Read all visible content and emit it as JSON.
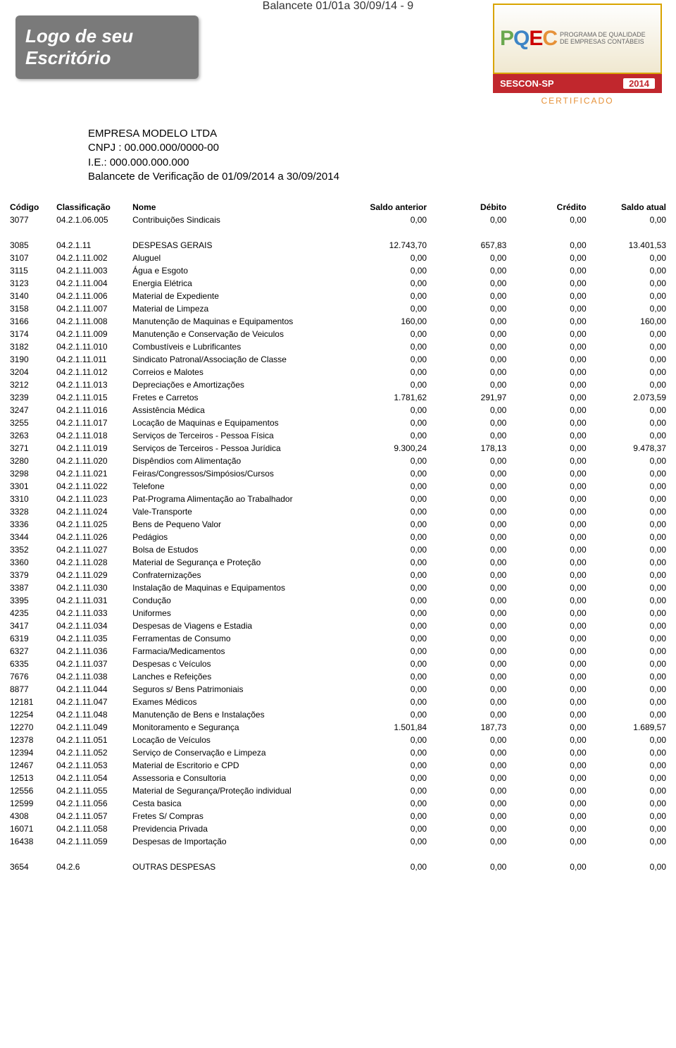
{
  "page_header_title": "Balancete 01/01a 30/09/14 - 9",
  "logo": {
    "line1": "Logo de seu",
    "line2": "Escritório"
  },
  "pqec": {
    "letters": [
      "P",
      "Q",
      "E",
      "C"
    ],
    "subtitle": "PROGRAMA DE QUALIDADE DE EMPRESAS CONTÁBEIS",
    "bar_left": "SESCON-SP",
    "bar_year": "2014",
    "certificado": "CERTIFICADO"
  },
  "company": {
    "name": "EMPRESA MODELO LTDA",
    "cnpj_label": "CNPJ : 00.000.000/0000-00",
    "ie_label": "I.E.: 000.000.000.000",
    "doc_title": "Balancete de Verificação de 01/09/2014 a 30/09/2014"
  },
  "columns": [
    "Código",
    "Classificação",
    "Nome",
    "Saldo anterior",
    "Débito",
    "Crédito",
    "Saldo atual"
  ],
  "rows": [
    {
      "codigo": "3077",
      "classif": "04.2.1.06.005",
      "nome": "Contribuições Sindicais",
      "sa": "0,00",
      "deb": "0,00",
      "cred": "0,00",
      "sat": "0,00"
    },
    {
      "spacer": true
    },
    {
      "codigo": "3085",
      "classif": "04.2.1.11",
      "nome": "DESPESAS GERAIS",
      "sa": "12.743,70",
      "deb": "657,83",
      "cred": "0,00",
      "sat": "13.401,53"
    },
    {
      "codigo": "3107",
      "classif": "04.2.1.11.002",
      "nome": "Aluguel",
      "sa": "0,00",
      "deb": "0,00",
      "cred": "0,00",
      "sat": "0,00"
    },
    {
      "codigo": "3115",
      "classif": "04.2.1.11.003",
      "nome": "Água e Esgoto",
      "sa": "0,00",
      "deb": "0,00",
      "cred": "0,00",
      "sat": "0,00"
    },
    {
      "codigo": "3123",
      "classif": "04.2.1.11.004",
      "nome": "Energia Elétrica",
      "sa": "0,00",
      "deb": "0,00",
      "cred": "0,00",
      "sat": "0,00"
    },
    {
      "codigo": "3140",
      "classif": "04.2.1.11.006",
      "nome": "Material de Expediente",
      "sa": "0,00",
      "deb": "0,00",
      "cred": "0,00",
      "sat": "0,00"
    },
    {
      "codigo": "3158",
      "classif": "04.2.1.11.007",
      "nome": "Material de Limpeza",
      "sa": "0,00",
      "deb": "0,00",
      "cred": "0,00",
      "sat": "0,00"
    },
    {
      "codigo": "3166",
      "classif": "04.2.1.11.008",
      "nome": "Manutenção de Maquinas e Equipamentos",
      "sa": "160,00",
      "deb": "0,00",
      "cred": "0,00",
      "sat": "160,00"
    },
    {
      "codigo": "3174",
      "classif": "04.2.1.11.009",
      "nome": "Manutenção e Conservação de Veiculos",
      "sa": "0,00",
      "deb": "0,00",
      "cred": "0,00",
      "sat": "0,00"
    },
    {
      "codigo": "3182",
      "classif": "04.2.1.11.010",
      "nome": "Combustíveis e Lubrificantes",
      "sa": "0,00",
      "deb": "0,00",
      "cred": "0,00",
      "sat": "0,00"
    },
    {
      "codigo": "3190",
      "classif": "04.2.1.11.011",
      "nome": "Sindicato Patronal/Associação de Classe",
      "sa": "0,00",
      "deb": "0,00",
      "cred": "0,00",
      "sat": "0,00"
    },
    {
      "codigo": "3204",
      "classif": "04.2.1.11.012",
      "nome": "Correios e Malotes",
      "sa": "0,00",
      "deb": "0,00",
      "cred": "0,00",
      "sat": "0,00"
    },
    {
      "codigo": "3212",
      "classif": "04.2.1.11.013",
      "nome": "Depreciações e Amortizações",
      "sa": "0,00",
      "deb": "0,00",
      "cred": "0,00",
      "sat": "0,00"
    },
    {
      "codigo": "3239",
      "classif": "04.2.1.11.015",
      "nome": "Fretes e Carretos",
      "sa": "1.781,62",
      "deb": "291,97",
      "cred": "0,00",
      "sat": "2.073,59"
    },
    {
      "codigo": "3247",
      "classif": "04.2.1.11.016",
      "nome": "Assistência Médica",
      "sa": "0,00",
      "deb": "0,00",
      "cred": "0,00",
      "sat": "0,00"
    },
    {
      "codigo": "3255",
      "classif": "04.2.1.11.017",
      "nome": "Locação de Maquinas e Equipamentos",
      "sa": "0,00",
      "deb": "0,00",
      "cred": "0,00",
      "sat": "0,00"
    },
    {
      "codigo": "3263",
      "classif": "04.2.1.11.018",
      "nome": "Serviços de Terceiros - Pessoa Física",
      "sa": "0,00",
      "deb": "0,00",
      "cred": "0,00",
      "sat": "0,00"
    },
    {
      "codigo": "3271",
      "classif": "04.2.1.11.019",
      "nome": "Serviços de Terceiros - Pessoa Jurídica",
      "sa": "9.300,24",
      "deb": "178,13",
      "cred": "0,00",
      "sat": "9.478,37"
    },
    {
      "codigo": "3280",
      "classif": "04.2.1.11.020",
      "nome": "Dispêndios com Alimentação",
      "sa": "0,00",
      "deb": "0,00",
      "cred": "0,00",
      "sat": "0,00"
    },
    {
      "codigo": "3298",
      "classif": "04.2.1.11.021",
      "nome": "Feiras/Congressos/Simpósios/Cursos",
      "sa": "0,00",
      "deb": "0,00",
      "cred": "0,00",
      "sat": "0,00"
    },
    {
      "codigo": "3301",
      "classif": "04.2.1.11.022",
      "nome": "Telefone",
      "sa": "0,00",
      "deb": "0,00",
      "cred": "0,00",
      "sat": "0,00"
    },
    {
      "codigo": "3310",
      "classif": "04.2.1.11.023",
      "nome": "Pat-Programa Alimentação ao Trabalhador",
      "sa": "0,00",
      "deb": "0,00",
      "cred": "0,00",
      "sat": "0,00"
    },
    {
      "codigo": "3328",
      "classif": "04.2.1.11.024",
      "nome": "Vale-Transporte",
      "sa": "0,00",
      "deb": "0,00",
      "cred": "0,00",
      "sat": "0,00"
    },
    {
      "codigo": "3336",
      "classif": "04.2.1.11.025",
      "nome": "Bens de Pequeno Valor",
      "sa": "0,00",
      "deb": "0,00",
      "cred": "0,00",
      "sat": "0,00"
    },
    {
      "codigo": "3344",
      "classif": "04.2.1.11.026",
      "nome": "Pedágios",
      "sa": "0,00",
      "deb": "0,00",
      "cred": "0,00",
      "sat": "0,00"
    },
    {
      "codigo": "3352",
      "classif": "04.2.1.11.027",
      "nome": "Bolsa de Estudos",
      "sa": "0,00",
      "deb": "0,00",
      "cred": "0,00",
      "sat": "0,00"
    },
    {
      "codigo": "3360",
      "classif": "04.2.1.11.028",
      "nome": "Material de Segurança e Proteção",
      "sa": "0,00",
      "deb": "0,00",
      "cred": "0,00",
      "sat": "0,00"
    },
    {
      "codigo": "3379",
      "classif": "04.2.1.11.029",
      "nome": "Confraternizações",
      "sa": "0,00",
      "deb": "0,00",
      "cred": "0,00",
      "sat": "0,00"
    },
    {
      "codigo": "3387",
      "classif": "04.2.1.11.030",
      "nome": "Instalação de Maquinas e Equipamentos",
      "sa": "0,00",
      "deb": "0,00",
      "cred": "0,00",
      "sat": "0,00"
    },
    {
      "codigo": "3395",
      "classif": "04.2.1.11.031",
      "nome": "Condução",
      "sa": "0,00",
      "deb": "0,00",
      "cred": "0,00",
      "sat": "0,00"
    },
    {
      "codigo": "4235",
      "classif": "04.2.1.11.033",
      "nome": "Uniformes",
      "sa": "0,00",
      "deb": "0,00",
      "cred": "0,00",
      "sat": "0,00"
    },
    {
      "codigo": "3417",
      "classif": "04.2.1.11.034",
      "nome": "Despesas de Viagens e Estadia",
      "sa": "0,00",
      "deb": "0,00",
      "cred": "0,00",
      "sat": "0,00"
    },
    {
      "codigo": "6319",
      "classif": "04.2.1.11.035",
      "nome": "Ferramentas de Consumo",
      "sa": "0,00",
      "deb": "0,00",
      "cred": "0,00",
      "sat": "0,00"
    },
    {
      "codigo": "6327",
      "classif": "04.2.1.11.036",
      "nome": "Farmacia/Medicamentos",
      "sa": "0,00",
      "deb": "0,00",
      "cred": "0,00",
      "sat": "0,00"
    },
    {
      "codigo": "6335",
      "classif": "04.2.1.11.037",
      "nome": "Despesas c Veículos",
      "sa": "0,00",
      "deb": "0,00",
      "cred": "0,00",
      "sat": "0,00"
    },
    {
      "codigo": "7676",
      "classif": "04.2.1.11.038",
      "nome": "Lanches e Refeições",
      "sa": "0,00",
      "deb": "0,00",
      "cred": "0,00",
      "sat": "0,00"
    },
    {
      "codigo": "8877",
      "classif": "04.2.1.11.044",
      "nome": "Seguros s/ Bens Patrimoniais",
      "sa": "0,00",
      "deb": "0,00",
      "cred": "0,00",
      "sat": "0,00"
    },
    {
      "codigo": "12181",
      "classif": "04.2.1.11.047",
      "nome": "Exames Médicos",
      "sa": "0,00",
      "deb": "0,00",
      "cred": "0,00",
      "sat": "0,00"
    },
    {
      "codigo": "12254",
      "classif": "04.2.1.11.048",
      "nome": "Manutenção de Bens e Instalações",
      "sa": "0,00",
      "deb": "0,00",
      "cred": "0,00",
      "sat": "0,00"
    },
    {
      "codigo": "12270",
      "classif": "04.2.1.11.049",
      "nome": "Monitoramento e Segurança",
      "sa": "1.501,84",
      "deb": "187,73",
      "cred": "0,00",
      "sat": "1.689,57"
    },
    {
      "codigo": "12378",
      "classif": "04.2.1.11.051",
      "nome": "Locação de Veículos",
      "sa": "0,00",
      "deb": "0,00",
      "cred": "0,00",
      "sat": "0,00"
    },
    {
      "codigo": "12394",
      "classif": "04.2.1.11.052",
      "nome": "Serviço de Conservação e Limpeza",
      "sa": "0,00",
      "deb": "0,00",
      "cred": "0,00",
      "sat": "0,00"
    },
    {
      "codigo": "12467",
      "classif": "04.2.1.11.053",
      "nome": "Material de Escritorio e CPD",
      "sa": "0,00",
      "deb": "0,00",
      "cred": "0,00",
      "sat": "0,00"
    },
    {
      "codigo": "12513",
      "classif": "04.2.1.11.054",
      "nome": "Assessoria e Consultoria",
      "sa": "0,00",
      "deb": "0,00",
      "cred": "0,00",
      "sat": "0,00"
    },
    {
      "codigo": "12556",
      "classif": "04.2.1.11.055",
      "nome": "Material de Segurança/Proteção individual",
      "sa": "0,00",
      "deb": "0,00",
      "cred": "0,00",
      "sat": "0,00"
    },
    {
      "codigo": "12599",
      "classif": "04.2.1.11.056",
      "nome": "Cesta basica",
      "sa": "0,00",
      "deb": "0,00",
      "cred": "0,00",
      "sat": "0,00"
    },
    {
      "codigo": "4308",
      "classif": "04.2.1.11.057",
      "nome": "Fretes S/ Compras",
      "sa": "0,00",
      "deb": "0,00",
      "cred": "0,00",
      "sat": "0,00"
    },
    {
      "codigo": "16071",
      "classif": "04.2.1.11.058",
      "nome": "Previdencia Privada",
      "sa": "0,00",
      "deb": "0,00",
      "cred": "0,00",
      "sat": "0,00"
    },
    {
      "codigo": "16438",
      "classif": "04.2.1.11.059",
      "nome": "Despesas de Importação",
      "sa": "0,00",
      "deb": "0,00",
      "cred": "0,00",
      "sat": "0,00"
    },
    {
      "spacer": true
    },
    {
      "codigo": "3654",
      "classif": "04.2.6",
      "nome": "OUTRAS DESPESAS",
      "sa": "0,00",
      "deb": "0,00",
      "cred": "0,00",
      "sat": "0,00"
    }
  ]
}
